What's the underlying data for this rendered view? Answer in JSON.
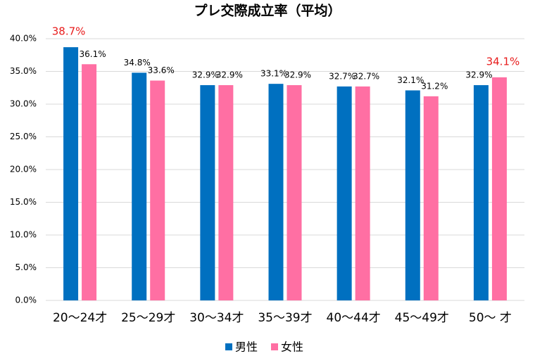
{
  "chart_data": {
    "type": "bar",
    "title": "プレ交際成立率（平均）",
    "categories": [
      "20～24才",
      "25～29才",
      "30～34才",
      "35～39才",
      "40～44才",
      "45～49才",
      "50～ 才"
    ],
    "series": [
      {
        "name": "男性",
        "color": "#0070c0",
        "values": [
          38.7,
          34.8,
          32.9,
          33.1,
          32.7,
          32.1,
          32.9
        ],
        "value_labels": [
          "38.7%",
          "34.8%",
          "32.9%",
          "33.1%",
          "32.7%",
          "32.1%",
          "32.9%"
        ],
        "value_label_colors": [
          "#e81c1c",
          "#000000",
          "#000000",
          "#000000",
          "#000000",
          "#000000",
          "#000000"
        ]
      },
      {
        "name": "女性",
        "color": "#ff6fa3",
        "values": [
          36.1,
          33.6,
          32.9,
          32.9,
          32.7,
          31.2,
          34.1
        ],
        "value_labels": [
          "36.1%",
          "33.6%",
          "32.9%",
          "32.9%",
          "32.7%",
          "31.2%",
          "34.1%"
        ],
        "value_label_colors": [
          "#000000",
          "#000000",
          "#000000",
          "#000000",
          "#000000",
          "#000000",
          "#e81c1c"
        ]
      }
    ],
    "ylim": [
      0,
      40
    ],
    "yticks": [
      {
        "value": 0,
        "label": "0.0%"
      },
      {
        "value": 5,
        "label": "5.0%"
      },
      {
        "value": 10,
        "label": "10.0%"
      },
      {
        "value": 15,
        "label": "15.0%"
      },
      {
        "value": 20,
        "label": "20.0%"
      },
      {
        "value": 25,
        "label": "25.0%"
      },
      {
        "value": 30,
        "label": "30.0%"
      },
      {
        "value": 35,
        "label": "35.0%"
      },
      {
        "value": 40,
        "label": "40.0%"
      }
    ],
    "grid": true,
    "legend": "bottom"
  }
}
